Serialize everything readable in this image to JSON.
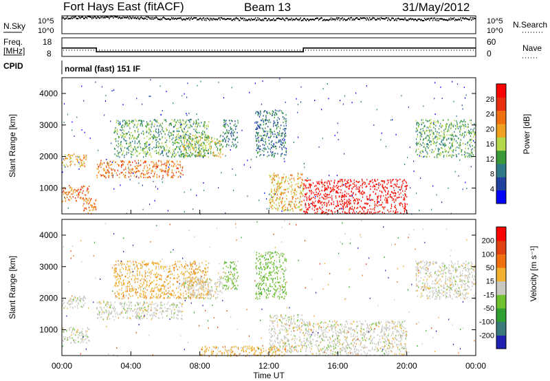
{
  "header": {
    "site": "Fort Hays East (fitACF)",
    "beam": "Beam 13",
    "date": "31/May/2012"
  },
  "noise_panel": {
    "left_label": "N.Sky",
    "right_label": "N.Search",
    "left_ticks": [
      "10^5",
      "10^0"
    ],
    "right_ticks": [
      "10^5",
      "10^0"
    ]
  },
  "freq_panel": {
    "left_label_1": "Freq.",
    "left_label_2": "[MHz]",
    "right_label": "Nave",
    "left_ticks": [
      "18",
      "8"
    ],
    "right_ticks": [
      "60",
      "0"
    ]
  },
  "cpid": {
    "label": "CPID",
    "value": "normal (fast) 151 IF"
  },
  "power_panel": {
    "ylabel": "Slant Range [km]",
    "yticks": [
      "4000",
      "3000",
      "2000",
      "1000"
    ],
    "colorbar_label": "Power [dB]",
    "colorbar_ticks": [
      "28",
      "24",
      "20",
      "16",
      "12",
      "8",
      "4"
    ],
    "colors": [
      "#0000ff",
      "#2040a0",
      "#2e7a88",
      "#3a9a3a",
      "#b5d84a",
      "#f0a020",
      "#f07010",
      "#e83010",
      "#ff0000"
    ]
  },
  "velocity_panel": {
    "ylabel": "Slant Range [km]",
    "yticks": [
      "4000",
      "3000",
      "2000",
      "1000"
    ],
    "colorbar_label": "Velocity [m s⁻¹]",
    "colorbar_ticks": [
      "200",
      "100",
      "50",
      "15",
      "-15",
      "-50",
      "-100",
      "-200"
    ],
    "colors": [
      "#2020b0",
      "#3a7a7a",
      "#30a030",
      "#70c030",
      "#c8c8c0",
      "#f0b030",
      "#f07010",
      "#e04010",
      "#ff0000"
    ]
  },
  "xaxis": {
    "label": "Time UT",
    "ticks": [
      "00:00",
      "04:00",
      "08:00",
      "12:00",
      "16:00",
      "20:00",
      "00:00"
    ]
  },
  "chart_data": [
    {
      "type": "line",
      "title": "",
      "xlabel": "",
      "ylabel": "N.Sky",
      "x_hours": [
        0,
        1,
        2,
        4,
        6,
        8,
        10,
        12,
        14,
        16,
        18,
        20,
        22,
        24
      ],
      "series": [
        {
          "values_log10": [
            4.6,
            4.7,
            4.8,
            4.7,
            4.4,
            4.3,
            4.3,
            4.2,
            4.2,
            4.3,
            4.3,
            4.2,
            4.2,
            4.3
          ]
        }
      ],
      "ylim_log10": [
        0,
        5
      ]
    },
    {
      "type": "line",
      "title": "",
      "xlabel": "",
      "ylabel": "Freq. [MHz]",
      "series": [
        {
          "name": "Freq.",
          "x_hours": [
            0,
            2,
            2,
            14,
            14,
            24
          ],
          "values": [
            12.5,
            12.5,
            10.5,
            10.5,
            12.5,
            12.5
          ]
        }
      ],
      "ylim": [
        8,
        18
      ]
    },
    {
      "type": "heatmap",
      "title": "Power",
      "xlabel": "Time UT",
      "ylabel": "Slant Range [km]",
      "xlim_hours": [
        0,
        24
      ],
      "ylim_km": [
        180,
        4500
      ],
      "value_unit": "dB",
      "value_range": [
        0,
        32
      ],
      "regions": [
        {
          "t": [
            0.0,
            1.4
          ],
          "r": [
            1700,
            2100
          ],
          "level": 5
        },
        {
          "t": [
            0.0,
            1.6
          ],
          "r": [
            600,
            1100
          ],
          "level": 6
        },
        {
          "t": [
            1.2,
            2.0
          ],
          "r": [
            200,
            700
          ],
          "level": 6
        },
        {
          "t": [
            2.0,
            7.0
          ],
          "r": [
            1350,
            1900
          ],
          "level": 6
        },
        {
          "t": [
            3.0,
            8.5
          ],
          "r": [
            2000,
            3200
          ],
          "level": 3
        },
        {
          "t": [
            7.0,
            9.3
          ],
          "r": [
            2000,
            2700
          ],
          "level": 4
        },
        {
          "t": [
            9.3,
            10.2
          ],
          "r": [
            2300,
            3200
          ],
          "level": 2
        },
        {
          "t": [
            11.2,
            13.0
          ],
          "r": [
            2000,
            3500
          ],
          "level": 2
        },
        {
          "t": [
            12.0,
            14.0
          ],
          "r": [
            300,
            1500
          ],
          "level": 5
        },
        {
          "t": [
            14.0,
            20.0
          ],
          "r": [
            200,
            1300
          ],
          "level": 8
        },
        {
          "t": [
            20.5,
            24.0
          ],
          "r": [
            2000,
            3200
          ],
          "level": 3
        }
      ]
    },
    {
      "type": "heatmap",
      "title": "Velocity",
      "xlabel": "Time UT",
      "ylabel": "Slant Range [km]",
      "xlim_hours": [
        0,
        24
      ],
      "ylim_km": [
        180,
        4500
      ],
      "value_unit": "m s-1",
      "value_range": [
        -200,
        200
      ],
      "regions": [
        {
          "t": [
            0.0,
            1.4
          ],
          "r": [
            1700,
            2100
          ],
          "level": 4
        },
        {
          "t": [
            0.0,
            1.6
          ],
          "r": [
            600,
            1100
          ],
          "level": 4
        },
        {
          "t": [
            2.0,
            7.0
          ],
          "r": [
            1350,
            1900
          ],
          "level": 4
        },
        {
          "t": [
            3.0,
            8.5
          ],
          "r": [
            2000,
            3200
          ],
          "level": 5
        },
        {
          "t": [
            7.0,
            9.3
          ],
          "r": [
            2000,
            2700
          ],
          "level": 4
        },
        {
          "t": [
            9.3,
            10.2
          ],
          "r": [
            2300,
            3200
          ],
          "level": 3
        },
        {
          "t": [
            11.2,
            13.0
          ],
          "r": [
            2000,
            3500
          ],
          "level": 3
        },
        {
          "t": [
            12.0,
            14.0
          ],
          "r": [
            300,
            1500
          ],
          "level": 4
        },
        {
          "t": [
            14.0,
            20.0
          ],
          "r": [
            200,
            1300
          ],
          "level": 4
        },
        {
          "t": [
            8.0,
            13.0
          ],
          "r": [
            180,
            500
          ],
          "level": 5
        },
        {
          "t": [
            20.5,
            24.0
          ],
          "r": [
            2000,
            3200
          ],
          "level": 4
        }
      ]
    }
  ]
}
